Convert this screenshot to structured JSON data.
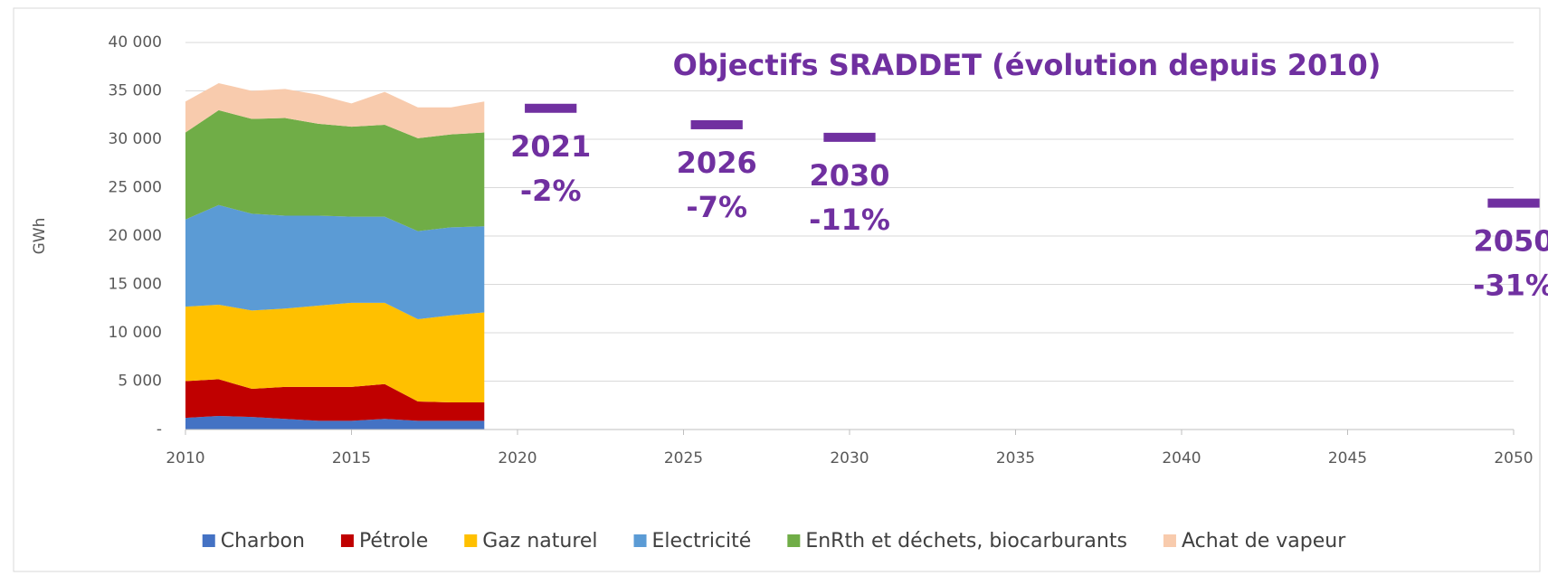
{
  "chart_data": {
    "type": "stacked_area",
    "annotation": "Objectifs SRADDET (évolution depuis 2010)",
    "y_label": "GWh",
    "x": [
      2010,
      2011,
      2012,
      2013,
      2014,
      2015,
      2016,
      2017,
      2018,
      2019
    ],
    "series": [
      {
        "name": "Charbon",
        "color": "#4472c4",
        "values": [
          1200,
          1400,
          1300,
          1100,
          900,
          900,
          1100,
          900,
          900,
          900
        ]
      },
      {
        "name": "Pétrole",
        "color": "#c00000",
        "values": [
          3800,
          3800,
          2900,
          3300,
          3500,
          3500,
          3600,
          2000,
          1900,
          1900
        ]
      },
      {
        "name": "Gaz naturel",
        "color": "#ffc000",
        "values": [
          7700,
          7700,
          8100,
          8100,
          8400,
          8700,
          8400,
          8500,
          9000,
          9300
        ]
      },
      {
        "name": "Electricité",
        "color": "#5b9bd5",
        "values": [
          9000,
          10300,
          10000,
          9600,
          9300,
          8900,
          8900,
          9100,
          9100,
          8900
        ]
      },
      {
        "name": "EnRth et déchets, biocarburants",
        "color": "#70ad47",
        "values": [
          9000,
          9800,
          9800,
          10100,
          9500,
          9300,
          9500,
          9600,
          9600,
          9700
        ]
      },
      {
        "name": "Achat de vapeur",
        "color": "#f8cbad",
        "values": [
          3200,
          2800,
          2900,
          3000,
          3000,
          2400,
          3400,
          3200,
          2800,
          3200
        ]
      }
    ],
    "targets": {
      "color": "#7030a0",
      "x": [
        2021,
        2026,
        2030,
        2050
      ],
      "values": [
        33200,
        31500,
        30200,
        23400
      ],
      "labels": [
        "2021",
        "2026",
        "2030",
        "2050"
      ],
      "changes": [
        "-2%",
        "-7%",
        "-11%",
        "-31%"
      ]
    },
    "xlim": [
      2010,
      2050
    ],
    "xticks": [
      2010,
      2015,
      2020,
      2025,
      2030,
      2035,
      2040,
      2045,
      2050
    ],
    "ylim": [
      0,
      40000
    ],
    "yticks": [
      {
        "value": 0,
        "label": "-"
      },
      {
        "value": 5000,
        "label": "5 000"
      },
      {
        "value": 10000,
        "label": "10 000"
      },
      {
        "value": 15000,
        "label": "15 000"
      },
      {
        "value": 20000,
        "label": "20 000"
      },
      {
        "value": 25000,
        "label": "25 000"
      },
      {
        "value": 30000,
        "label": "30 000"
      },
      {
        "value": 35000,
        "label": "35 000"
      },
      {
        "value": 40000,
        "label": "40 000"
      }
    ],
    "grid": true,
    "legend": "bottom"
  }
}
